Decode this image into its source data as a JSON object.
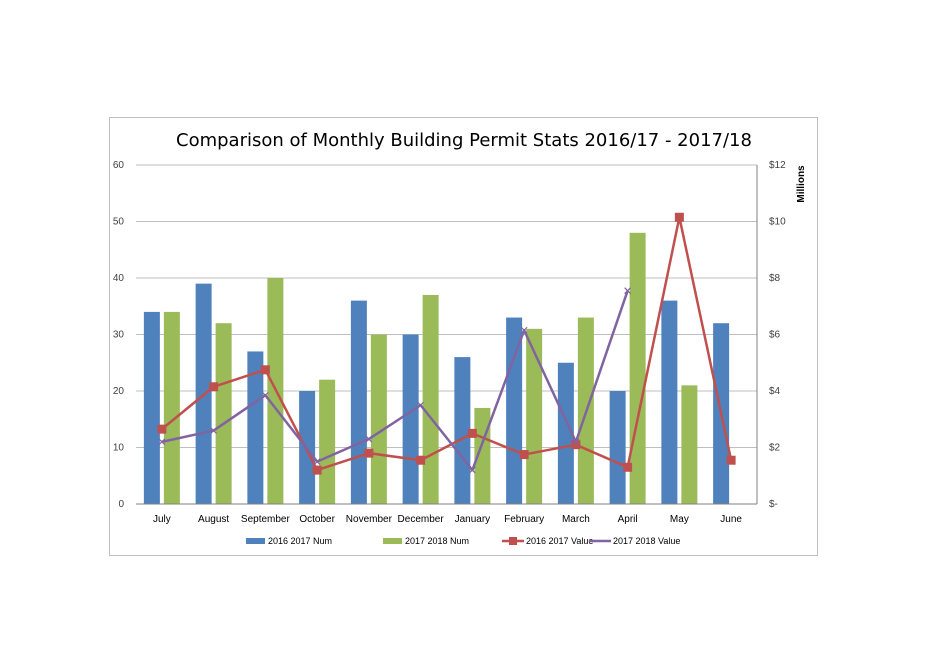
{
  "chart_data": {
    "type": "bar",
    "title": "Comparison of Monthly Building Permit Stats 2016/17 - 2017/18",
    "categories": [
      "July",
      "August",
      "September",
      "October",
      "November",
      "December",
      "January",
      "February",
      "March",
      "April",
      "May",
      "June"
    ],
    "y_left": {
      "range": [
        0,
        60
      ],
      "ticks": [
        "0",
        "10",
        "20",
        "30",
        "40",
        "50",
        "60"
      ]
    },
    "y_right": {
      "label": "Millions",
      "range": [
        0,
        12
      ],
      "ticks": [
        "$-",
        "$2",
        "$4",
        "$6",
        "$8",
        "$10",
        "$12"
      ]
    },
    "bar_series": [
      {
        "name": "2016 2017 Num",
        "color": "#4f81bd",
        "values": [
          34,
          39,
          27,
          20,
          36,
          30,
          26,
          33,
          25,
          20,
          36,
          32
        ]
      },
      {
        "name": "2017 2018 Num",
        "color": "#9bbb59",
        "values": [
          34,
          32,
          40,
          22,
          30,
          37,
          17,
          31,
          33,
          48,
          21,
          null
        ]
      }
    ],
    "line_series": [
      {
        "name": "2016 2017 Value",
        "color": "#c0504d",
        "marker": "square",
        "values": [
          2.65,
          4.15,
          4.75,
          1.2,
          1.8,
          1.55,
          2.5,
          1.75,
          2.1,
          1.3,
          10.15,
          1.55
        ]
      },
      {
        "name": "2017 2018 Value",
        "color": "#8064a2",
        "marker": "x",
        "values": [
          2.2,
          2.6,
          3.85,
          1.5,
          2.3,
          3.5,
          1.2,
          6.15,
          2.2,
          7.55,
          null,
          null
        ]
      }
    ],
    "grid": true,
    "legend_position": "bottom"
  }
}
